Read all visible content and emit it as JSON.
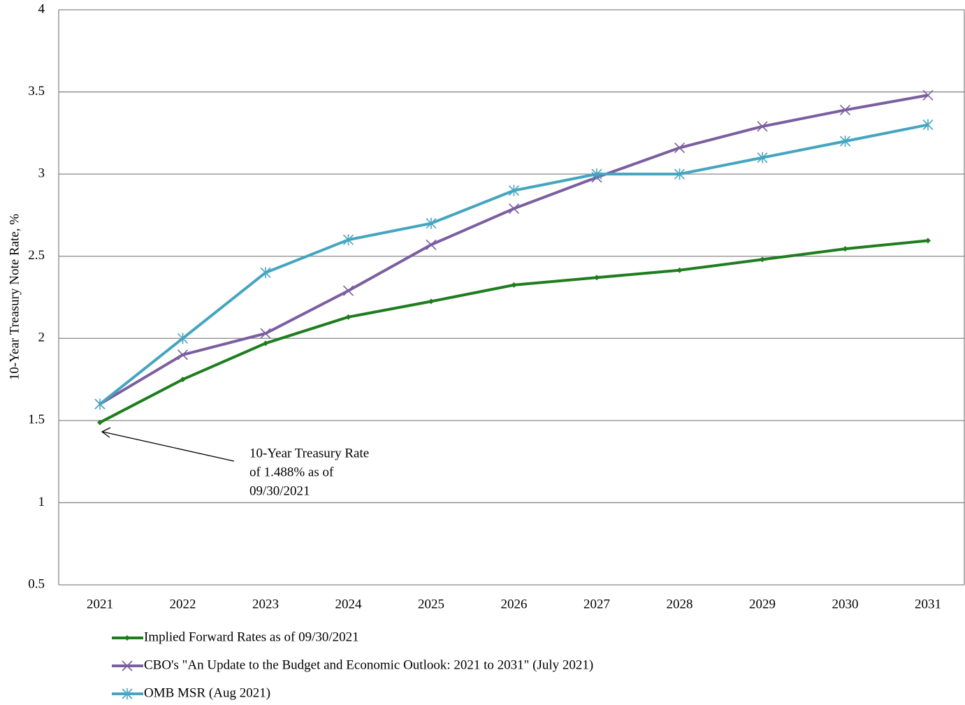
{
  "chart_data": {
    "type": "line",
    "y_label": "10-Year Treasury Note Rate, %",
    "categories": [
      "2021",
      "2022",
      "2023",
      "2024",
      "2025",
      "2026",
      "2027",
      "2028",
      "2029",
      "2030",
      "2031"
    ],
    "series": [
      {
        "name": "Implied Forward Rates as of 09/30/2021",
        "color": "#1e7d1e",
        "marker": "diamond",
        "values": [
          1.488,
          1.75,
          1.97,
          2.13,
          2.225,
          2.325,
          2.37,
          2.415,
          2.48,
          2.545,
          2.595
        ]
      },
      {
        "name": "CBO's \"An Update to the Budget and Economic Outlook: 2021 to 2031\" (July 2021)",
        "color": "#7b5ea0",
        "marker": "x",
        "values": [
          1.6,
          1.9,
          2.03,
          2.29,
          2.57,
          2.79,
          2.98,
          3.16,
          3.29,
          3.39,
          3.48
        ]
      },
      {
        "name": "OMB MSR (Aug 2021)",
        "color": "#45a5c0",
        "marker": "star",
        "values": [
          1.6,
          2.0,
          2.4,
          2.6,
          2.7,
          2.9,
          3.0,
          3.0,
          3.1,
          3.2,
          3.3
        ]
      }
    ],
    "annotation": [
      "10-Year Treasury Rate",
      "of 1.488% as of",
      "09/30/2021"
    ],
    "ylim": [
      0.5,
      4
    ],
    "yticks": [
      0.5,
      1,
      1.5,
      2,
      2.5,
      3,
      3.5,
      4
    ],
    "grid": true,
    "legend": "bottom"
  }
}
